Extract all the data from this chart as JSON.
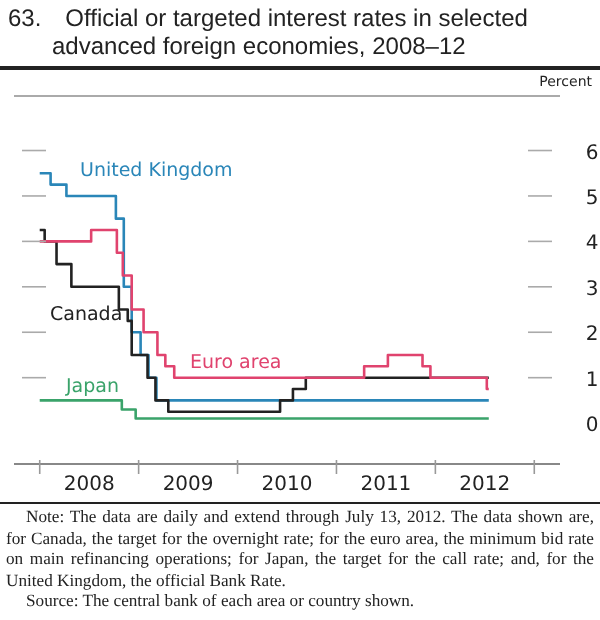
{
  "chart_data": {
    "type": "step",
    "title": "63. Official or targeted interest rates in selected advanced foreign economies, 2008–12",
    "ylabel": "Percent",
    "xlim": [
      2007.74,
      2013.26
    ],
    "xticks": [
      {
        "value": 2008,
        "label": null
      },
      {
        "value": 2008.5,
        "label": "2008"
      },
      {
        "value": 2009,
        "label": null
      },
      {
        "value": 2009.5,
        "label": "2009"
      },
      {
        "value": 2010,
        "label": null
      },
      {
        "value": 2010.5,
        "label": "2010"
      },
      {
        "value": 2011,
        "label": null
      },
      {
        "value": 2011.5,
        "label": "2011"
      },
      {
        "value": 2012,
        "label": null
      },
      {
        "value": 2012.5,
        "label": "2012"
      },
      {
        "value": 2013,
        "label": null
      }
    ],
    "ylim": [
      -0.9,
      7.2
    ],
    "yticks": [
      0,
      1,
      2,
      3,
      4,
      5,
      6
    ],
    "grid": false,
    "legend": false,
    "marker": "none",
    "line_style": "solid",
    "series": [
      {
        "name": "United Kingdom",
        "color": "#2a86b8",
        "x": [
          2008.0,
          2008.11,
          2008.27,
          2008.77,
          2008.85,
          2008.93,
          2009.02,
          2009.1,
          2009.18,
          2012.54
        ],
        "values": [
          5.5,
          5.25,
          5.0,
          4.5,
          3.0,
          2.0,
          1.5,
          1.0,
          0.5,
          0.5
        ]
      },
      {
        "name": "Canada",
        "color": "#222222",
        "x": [
          2008.0,
          2008.05,
          2008.17,
          2008.32,
          2008.8,
          2008.89,
          2008.93,
          2009.09,
          2009.17,
          2009.3,
          2010.43,
          2010.56,
          2010.69,
          2012.54
        ],
        "values": [
          4.25,
          4.0,
          3.5,
          3.0,
          2.5,
          2.25,
          1.5,
          1.0,
          0.5,
          0.25,
          0.5,
          0.75,
          1.0,
          1.0
        ]
      },
      {
        "name": "Euro area",
        "color": "#e0436e",
        "x": [
          2008.0,
          2008.52,
          2008.78,
          2008.84,
          2008.93,
          2009.05,
          2009.19,
          2009.27,
          2009.36,
          2011.28,
          2011.52,
          2011.87,
          2011.95,
          2012.52,
          2012.54
        ],
        "values": [
          4.0,
          4.25,
          3.75,
          3.25,
          2.5,
          2.0,
          1.5,
          1.25,
          1.0,
          1.25,
          1.5,
          1.25,
          1.0,
          0.75,
          0.75
        ]
      },
      {
        "name": "Japan",
        "color": "#3aa36a",
        "x": [
          2008.0,
          2008.83,
          2008.97,
          2012.54
        ],
        "values": [
          0.5,
          0.3,
          0.1,
          0.1
        ]
      }
    ],
    "annotations": [
      "Note: The data are daily and extend through July 13, 2012. The data shown are, for Canada, the target for the overnight rate; for the euro area, the minimum bid rate on main refinancing operations; for Japan, the target for the call rate; and, for the United Kingdom, the official Bank Rate.",
      "Source: The central bank of each area or country shown."
    ]
  }
}
